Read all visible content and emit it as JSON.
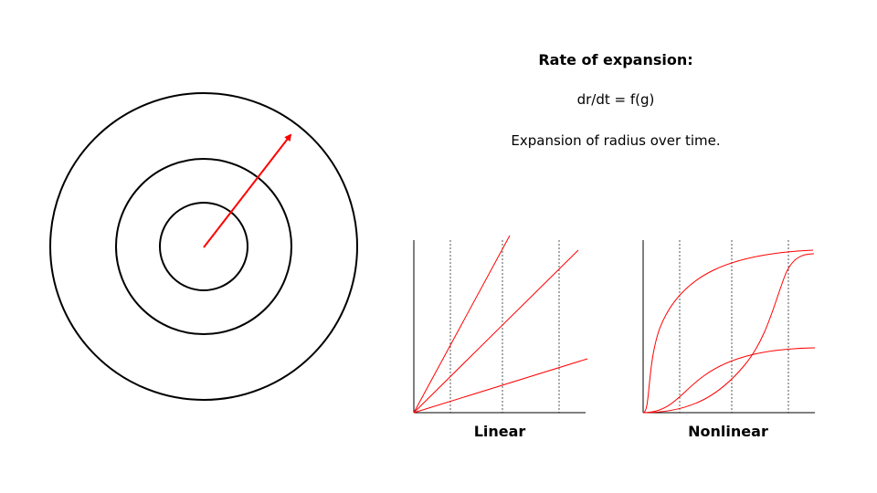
{
  "text": {
    "title": "Rate of expansion:",
    "formula": "dr/dt = f(g)",
    "caption": "Expansion of radius over time."
  },
  "graphs": {
    "linear_label": "Linear",
    "nonlinear_label": "Nonlinear"
  },
  "colors": {
    "ink": "#000000",
    "accent": "#ff0000",
    "gridline": "#555555"
  }
}
